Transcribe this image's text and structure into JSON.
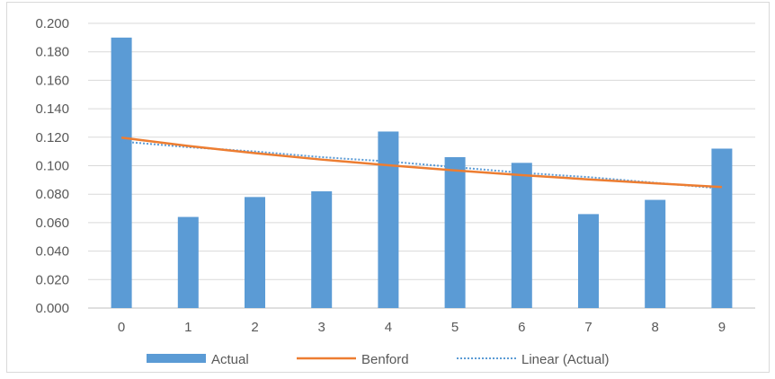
{
  "chart_data": {
    "type": "bar",
    "categories": [
      "0",
      "1",
      "2",
      "3",
      "4",
      "5",
      "6",
      "7",
      "8",
      "9"
    ],
    "series": [
      {
        "name": "Actual",
        "type": "bar",
        "color": "#5b9bd5",
        "values": [
          0.19,
          0.064,
          0.078,
          0.082,
          0.124,
          0.106,
          0.102,
          0.066,
          0.076,
          0.112
        ]
      },
      {
        "name": "Benford",
        "type": "line",
        "color": "#ed7d31",
        "values": [
          0.1197,
          0.1139,
          0.1088,
          0.1043,
          0.1003,
          0.0967,
          0.0934,
          0.0904,
          0.0876,
          0.085
        ]
      },
      {
        "name": "Linear (Actual)",
        "type": "trendline",
        "style": "dotted",
        "color": "#5b9bd5",
        "values": [
          0.117,
          0.113,
          0.11,
          0.106,
          0.103,
          0.099,
          0.095,
          0.092,
          0.088,
          0.084
        ]
      }
    ],
    "y_ticks": [
      "0.000",
      "0.020",
      "0.040",
      "0.060",
      "0.080",
      "0.100",
      "0.120",
      "0.140",
      "0.160",
      "0.180",
      "0.200"
    ],
    "ylim": [
      0,
      0.2
    ],
    "grid": true,
    "legend_position": "bottom",
    "title": "",
    "xlabel": "",
    "ylabel": ""
  }
}
